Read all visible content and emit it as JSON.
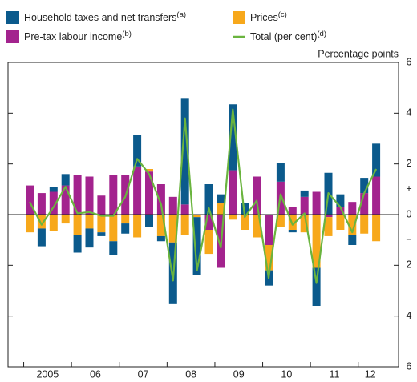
{
  "chart_data": {
    "type": "stacked-bar-line",
    "y_label": "Percentage points",
    "plus_label": "+",
    "minus_label": "−",
    "categories": [
      "2005",
      null,
      null,
      null,
      "06",
      null,
      null,
      null,
      "07",
      null,
      null,
      null,
      "08",
      null,
      null,
      null,
      "09",
      null,
      null,
      null,
      "10",
      null,
      null,
      null,
      "11",
      null,
      null,
      null,
      "12",
      null
    ],
    "ylim": [
      -6,
      6
    ],
    "yticks": [
      {
        "value": -6,
        "label": "6"
      },
      {
        "value": -4,
        "label": "4"
      },
      {
        "value": -2,
        "label": "2"
      },
      0,
      2,
      4,
      6
    ],
    "series": [
      {
        "name": "Household taxes and net transfers",
        "footnote": "(a)",
        "color": "#0b5a8c",
        "values": [
          0,
          -0.7,
          0.2,
          0.45,
          -0.7,
          -0.75,
          -0.15,
          -0.55,
          -0.4,
          1.25,
          -0.5,
          -0.2,
          -2.4,
          4.2,
          -2.3,
          1.2,
          0.35,
          2.6,
          0.45,
          0,
          -0.6,
          0.75,
          -0.1,
          0.25,
          -1.5,
          1.65,
          0.5,
          -0.4,
          0.6,
          1.3
        ]
      },
      {
        "name": "Pre-tax labour income",
        "footnote": "(b)",
        "color": "#a3238e",
        "values": [
          1.15,
          0.85,
          0.9,
          1.15,
          1.55,
          1.5,
          0.75,
          1.55,
          1.55,
          1.9,
          1.7,
          1.2,
          0.7,
          0.4,
          0,
          -0.6,
          -2.1,
          1.75,
          0,
          1.5,
          -1.2,
          1.3,
          0.3,
          0.7,
          0.9,
          -0.1,
          0.3,
          0.5,
          0.85,
          1.5
        ]
      },
      {
        "name": "Prices",
        "footnote": "(c)",
        "color": "#f7a81b",
        "values": [
          -0.7,
          -0.55,
          -0.65,
          -0.35,
          -0.8,
          -0.55,
          -0.7,
          -1.05,
          -0.35,
          -0.9,
          0.1,
          -0.85,
          -1.1,
          -0.8,
          -0.1,
          -0.95,
          0.45,
          -0.2,
          -0.6,
          -0.9,
          -1.0,
          -0.5,
          -0.6,
          -0.7,
          -2.1,
          -0.75,
          -0.6,
          -0.8,
          -0.75,
          -1.05
        ]
      },
      {
        "name": "Total (per cent)",
        "footnote": "(d)",
        "color": "#6ab43e",
        "kind": "line",
        "values": [
          0.5,
          -0.4,
          0.3,
          1.1,
          0.05,
          0.1,
          -0.05,
          -0.05,
          0.7,
          2.2,
          1.6,
          0.4,
          -2.6,
          3.8,
          -2.2,
          0.25,
          -1.3,
          4.15,
          -0.1,
          0.55,
          -2.5,
          0.8,
          -0.4,
          0.05,
          -2.7,
          0.85,
          0.3,
          -0.7,
          0.85,
          1.8
        ]
      }
    ]
  }
}
